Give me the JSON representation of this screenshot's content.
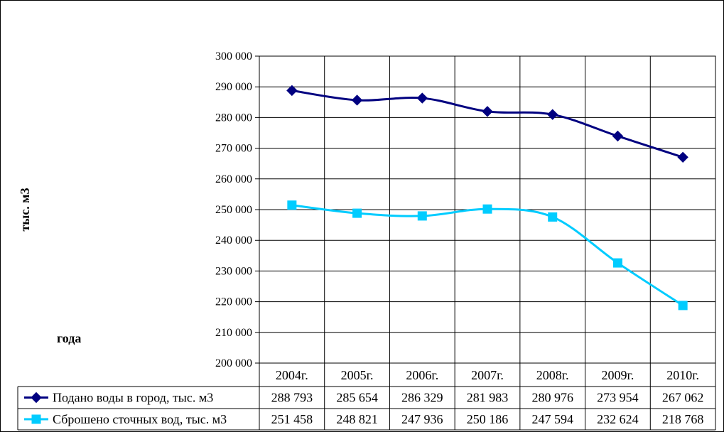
{
  "chart_data": {
    "type": "line",
    "ylabel": "тыс. м3",
    "xlabel": "года",
    "ylim": [
      200000,
      300000
    ],
    "y_ticks": [
      "300 000",
      "290 000",
      "280 000",
      "270 000",
      "260 000",
      "250 000",
      "240 000",
      "230 000",
      "220 000",
      "210 000",
      "200 000"
    ],
    "y_tick_values": [
      300000,
      290000,
      280000,
      270000,
      260000,
      250000,
      240000,
      230000,
      220000,
      210000,
      200000
    ],
    "categories": [
      "2004г.",
      "2005г.",
      "2006г.",
      "2007г.",
      "2008г.",
      "2009г.",
      "2010г."
    ],
    "grid": true,
    "legend": "data-table",
    "series": [
      {
        "name": "Подано воды в город, тыс. м3",
        "color": "#000080",
        "marker": "diamond",
        "values": [
          288793,
          285654,
          286329,
          281983,
          280976,
          273954,
          267062
        ],
        "labels": [
          "288 793",
          "285 654",
          "286 329",
          "281 983",
          "280 976",
          "273 954",
          "267 062"
        ]
      },
      {
        "name": "Сброшено сточных вод, тыс. м3",
        "color": "#00CCFF",
        "marker": "square",
        "values": [
          251458,
          248821,
          247936,
          250186,
          247594,
          232624,
          218768
        ],
        "labels": [
          "251 458",
          "248 821",
          "247 936",
          "250 186",
          "247 594",
          "232 624",
          "218 768"
        ]
      }
    ]
  }
}
